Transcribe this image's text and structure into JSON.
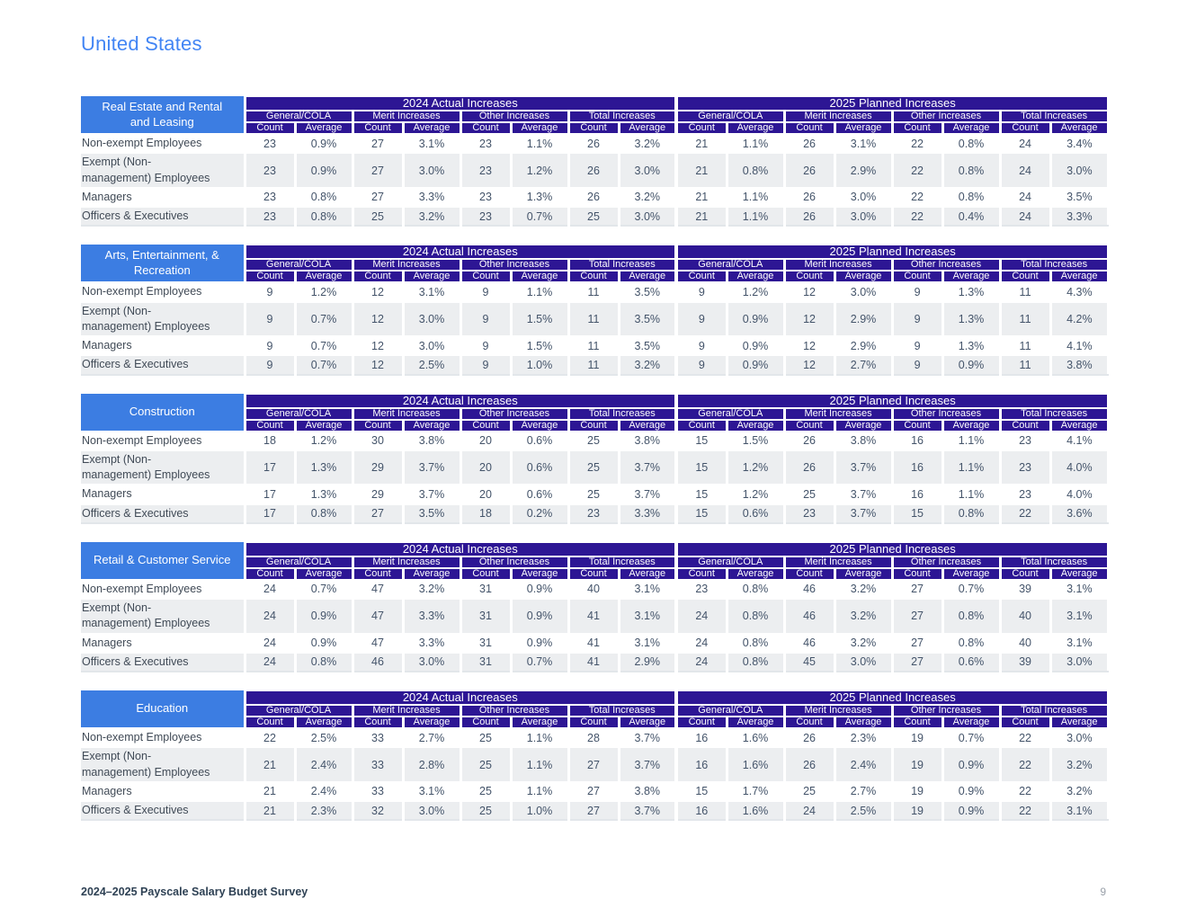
{
  "title": "United States",
  "header_labels": {
    "group_2024": "2024 Actual Increases",
    "group_2025": "2025 Planned Increases",
    "subgroups": [
      "General/COLA",
      "Merit Increases",
      "Other Increases",
      "Total Increases"
    ],
    "metrics": [
      "Count",
      "Average"
    ]
  },
  "row_labels": [
    "Non-exempt Employees",
    "Exempt (Non-\nmanagement) Employees",
    "Managers",
    "Officers & Executives"
  ],
  "tables": [
    {
      "slug": "real-estate-rental-leasing",
      "industry": "Real Estate and Rental\nand Leasing",
      "values": [
        [
          "23",
          "0.9%",
          "27",
          "3.1%",
          "23",
          "1.1%",
          "26",
          "3.2%",
          "21",
          "1.1%",
          "26",
          "3.1%",
          "22",
          "0.8%",
          "24",
          "3.4%"
        ],
        [
          "23",
          "0.9%",
          "27",
          "3.0%",
          "23",
          "1.2%",
          "26",
          "3.0%",
          "21",
          "0.8%",
          "26",
          "2.9%",
          "22",
          "0.8%",
          "24",
          "3.0%"
        ],
        [
          "23",
          "0.8%",
          "27",
          "3.3%",
          "23",
          "1.3%",
          "26",
          "3.2%",
          "21",
          "1.1%",
          "26",
          "3.0%",
          "22",
          "0.8%",
          "24",
          "3.5%"
        ],
        [
          "23",
          "0.8%",
          "25",
          "3.2%",
          "23",
          "0.7%",
          "25",
          "3.0%",
          "21",
          "1.1%",
          "26",
          "3.0%",
          "22",
          "0.4%",
          "24",
          "3.3%"
        ]
      ]
    },
    {
      "slug": "arts-entertainment-recreation",
      "industry": "Arts, Entertainment, &\nRecreation",
      "values": [
        [
          "9",
          "1.2%",
          "12",
          "3.1%",
          "9",
          "1.1%",
          "11",
          "3.5%",
          "9",
          "1.2%",
          "12",
          "3.0%",
          "9",
          "1.3%",
          "11",
          "4.3%"
        ],
        [
          "9",
          "0.7%",
          "12",
          "3.0%",
          "9",
          "1.5%",
          "11",
          "3.5%",
          "9",
          "0.9%",
          "12",
          "2.9%",
          "9",
          "1.3%",
          "11",
          "4.2%"
        ],
        [
          "9",
          "0.7%",
          "12",
          "3.0%",
          "9",
          "1.5%",
          "11",
          "3.5%",
          "9",
          "0.9%",
          "12",
          "2.9%",
          "9",
          "1.3%",
          "11",
          "4.1%"
        ],
        [
          "9",
          "0.7%",
          "12",
          "2.5%",
          "9",
          "1.0%",
          "11",
          "3.2%",
          "9",
          "0.9%",
          "12",
          "2.7%",
          "9",
          "0.9%",
          "11",
          "3.8%"
        ]
      ]
    },
    {
      "slug": "construction",
      "industry": "Construction",
      "values": [
        [
          "18",
          "1.2%",
          "30",
          "3.8%",
          "20",
          "0.6%",
          "25",
          "3.8%",
          "15",
          "1.5%",
          "26",
          "3.8%",
          "16",
          "1.1%",
          "23",
          "4.1%"
        ],
        [
          "17",
          "1.3%",
          "29",
          "3.7%",
          "20",
          "0.6%",
          "25",
          "3.7%",
          "15",
          "1.2%",
          "26",
          "3.7%",
          "16",
          "1.1%",
          "23",
          "4.0%"
        ],
        [
          "17",
          "1.3%",
          "29",
          "3.7%",
          "20",
          "0.6%",
          "25",
          "3.7%",
          "15",
          "1.2%",
          "25",
          "3.7%",
          "16",
          "1.1%",
          "23",
          "4.0%"
        ],
        [
          "17",
          "0.8%",
          "27",
          "3.5%",
          "18",
          "0.2%",
          "23",
          "3.3%",
          "15",
          "0.6%",
          "23",
          "3.7%",
          "15",
          "0.8%",
          "22",
          "3.6%"
        ]
      ]
    },
    {
      "slug": "retail-customer-service",
      "industry": "Retail & Customer Service",
      "values": [
        [
          "24",
          "0.7%",
          "47",
          "3.2%",
          "31",
          "0.9%",
          "40",
          "3.1%",
          "23",
          "0.8%",
          "46",
          "3.2%",
          "27",
          "0.7%",
          "39",
          "3.1%"
        ],
        [
          "24",
          "0.9%",
          "47",
          "3.3%",
          "31",
          "0.9%",
          "41",
          "3.1%",
          "24",
          "0.8%",
          "46",
          "3.2%",
          "27",
          "0.8%",
          "40",
          "3.1%"
        ],
        [
          "24",
          "0.9%",
          "47",
          "3.3%",
          "31",
          "0.9%",
          "41",
          "3.1%",
          "24",
          "0.8%",
          "46",
          "3.2%",
          "27",
          "0.8%",
          "40",
          "3.1%"
        ],
        [
          "24",
          "0.8%",
          "46",
          "3.0%",
          "31",
          "0.7%",
          "41",
          "2.9%",
          "24",
          "0.8%",
          "45",
          "3.0%",
          "27",
          "0.6%",
          "39",
          "3.0%"
        ]
      ]
    },
    {
      "slug": "education",
      "industry": "Education",
      "values": [
        [
          "22",
          "2.5%",
          "33",
          "2.7%",
          "25",
          "1.1%",
          "28",
          "3.7%",
          "16",
          "1.6%",
          "26",
          "2.3%",
          "19",
          "0.7%",
          "22",
          "3.0%"
        ],
        [
          "21",
          "2.4%",
          "33",
          "2.8%",
          "25",
          "1.1%",
          "27",
          "3.7%",
          "16",
          "1.6%",
          "26",
          "2.4%",
          "19",
          "0.9%",
          "22",
          "3.2%"
        ],
        [
          "21",
          "2.4%",
          "33",
          "3.1%",
          "25",
          "1.1%",
          "27",
          "3.8%",
          "15",
          "1.7%",
          "25",
          "2.7%",
          "19",
          "0.9%",
          "22",
          "3.2%"
        ],
        [
          "21",
          "2.3%",
          "32",
          "3.0%",
          "25",
          "1.0%",
          "27",
          "3.7%",
          "16",
          "1.6%",
          "24",
          "2.5%",
          "19",
          "0.9%",
          "22",
          "3.1%"
        ]
      ]
    }
  ],
  "footer": {
    "survey_title": "2024–2025 Payscale Salary Budget Survey",
    "page_number": "9"
  },
  "colors": {
    "title_blue": "#4285f4",
    "industry_blue": "#3c7de2",
    "header_indigo": "#2d1694",
    "row_alt": "#eceef0",
    "data_text": "#44546a",
    "label_text": "#404a56",
    "footer_navy": "#2e4154",
    "page_number_gray": "#9aa1aa"
  }
}
